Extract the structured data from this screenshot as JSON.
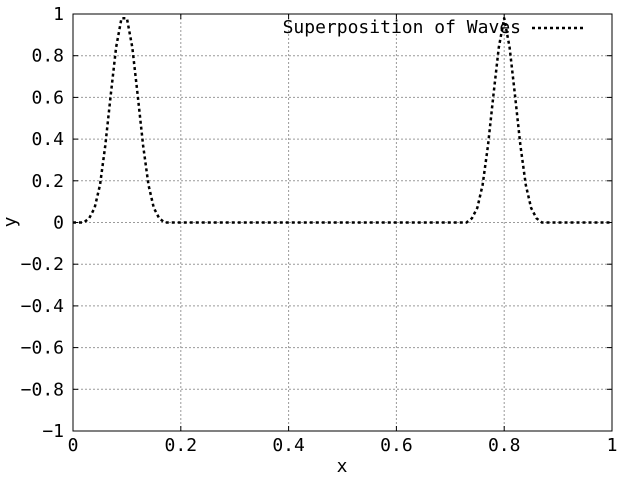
{
  "chart_data": {
    "type": "line",
    "title": "",
    "xlabel": "x",
    "ylabel": "y",
    "xlim": [
      0,
      1
    ],
    "ylim": [
      -1,
      1
    ],
    "xticks": [
      0,
      0.2,
      0.4,
      0.6,
      0.8,
      1
    ],
    "xtick_labels": [
      "0",
      "0.2",
      "0.4",
      "0.6",
      "0.8",
      "1"
    ],
    "yticks": [
      -1,
      -0.8,
      -0.6,
      -0.4,
      -0.2,
      0,
      0.2,
      0.4,
      0.6,
      0.8,
      1
    ],
    "ytick_labels": [
      "−1",
      "−0.8",
      "−0.6",
      "−0.4",
      "−0.2",
      "0",
      "0.2",
      "0.4",
      "0.6",
      "0.8",
      "1"
    ],
    "grid": true,
    "legend_position": "top-right",
    "series": [
      {
        "name": "Superposition of Waves",
        "style": "dotted",
        "color": "#000000",
        "x": [
          0,
          0.01,
          0.02,
          0.03,
          0.04,
          0.05,
          0.06,
          0.07,
          0.08,
          0.09,
          0.1,
          0.11,
          0.12,
          0.13,
          0.14,
          0.15,
          0.16,
          0.17,
          0.18,
          0.2,
          0.3,
          0.4,
          0.5,
          0.6,
          0.7,
          0.71,
          0.72,
          0.73,
          0.74,
          0.75,
          0.76,
          0.77,
          0.78,
          0.79,
          0.8,
          0.81,
          0.82,
          0.83,
          0.84,
          0.85,
          0.86,
          0.87,
          0.88,
          0.9,
          1.0
        ],
        "y": [
          0,
          0,
          0,
          0.02,
          0.07,
          0.18,
          0.37,
          0.61,
          0.84,
          0.98,
          0.98,
          0.84,
          0.61,
          0.37,
          0.18,
          0.07,
          0.02,
          0,
          0,
          0,
          0,
          0,
          0,
          0,
          0,
          0,
          0,
          0,
          0.02,
          0.07,
          0.18,
          0.37,
          0.61,
          0.84,
          0.98,
          0.84,
          0.61,
          0.37,
          0.18,
          0.07,
          0.02,
          0,
          0,
          0,
          0
        ]
      }
    ]
  }
}
